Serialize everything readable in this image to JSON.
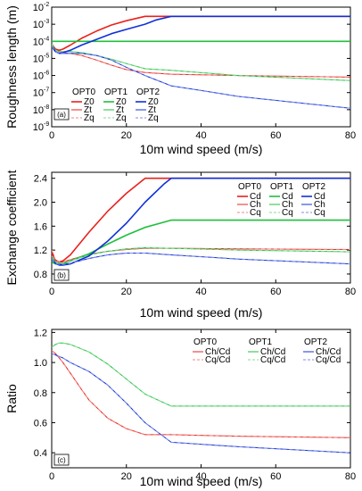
{
  "colors": {
    "opt0": "#e8221c",
    "opt1": "#1fbf3c",
    "opt2": "#1030d8"
  },
  "chart_data": [
    {
      "type": "line",
      "panel_label": "(a)",
      "xlabel": "10m wind speed (m/s)",
      "ylabel": "Roughness length (m)",
      "xlim": [
        0,
        80
      ],
      "ylim": [
        1e-09,
        0.01
      ],
      "log_y": true,
      "xticks": [
        0,
        20,
        40,
        60,
        80
      ],
      "yticks": [
        1e-09,
        1e-08,
        1e-07,
        1e-06,
        1e-05,
        0.0001,
        0.001,
        0.01
      ],
      "ytick_labels": [
        "10",
        "10",
        "10",
        "10",
        "10",
        "10",
        "10",
        "10"
      ],
      "ytick_exponents": [
        "-9",
        "-8",
        "-7",
        "-6",
        "-5",
        "-4",
        "-3",
        "-2"
      ],
      "legend": [
        {
          "group": "OPT0",
          "items": [
            "Z0",
            "Zt",
            "Zq"
          ]
        },
        {
          "group": "OPT1",
          "items": [
            "Z0",
            "Zt",
            "Zq"
          ]
        },
        {
          "group": "OPT2",
          "items": [
            "Z0",
            "Zt",
            "Zq"
          ]
        }
      ],
      "series": [
        {
          "name": "Z0",
          "group": "OPT0",
          "style": "solid",
          "x": [
            0,
            1,
            2,
            3,
            5,
            8,
            12,
            16,
            20,
            25,
            32,
            50,
            80
          ],
          "y": [
            7e-05,
            3.5e-05,
            3e-05,
            3.5e-05,
            6e-05,
            0.00015,
            0.0004,
            0.0009,
            0.0016,
            0.0029,
            0.0029,
            0.0029,
            0.0029
          ]
        },
        {
          "name": "Zt",
          "group": "OPT0",
          "style": "solid",
          "x": [
            0,
            1,
            2,
            3,
            5,
            8,
            12,
            16,
            20,
            25,
            32,
            50,
            80
          ],
          "y": [
            6e-05,
            2.5e-05,
            2e-05,
            2e-05,
            2e-05,
            1.5e-05,
            8e-06,
            4e-06,
            2.2e-06,
            1.5e-06,
            1.2e-06,
            1e-06,
            8e-07
          ]
        },
        {
          "name": "Zq",
          "group": "OPT0",
          "style": "dashed",
          "x": [
            0,
            1,
            2,
            3,
            5,
            8,
            12,
            16,
            20,
            25,
            32,
            50,
            80
          ],
          "y": [
            6e-05,
            2.5e-05,
            2e-05,
            2e-05,
            2e-05,
            1.5e-05,
            8e-06,
            4e-06,
            2.2e-06,
            1.5e-06,
            1.2e-06,
            1e-06,
            8e-07
          ]
        },
        {
          "name": "Z0",
          "group": "OPT1",
          "style": "solid",
          "x": [
            0,
            80
          ],
          "y": [
            0.0001,
            0.0001
          ]
        },
        {
          "name": "Zt",
          "group": "OPT1",
          "style": "solid",
          "x": [
            0,
            1,
            2,
            3,
            5,
            8,
            12,
            16,
            20,
            25,
            32,
            50,
            80
          ],
          "y": [
            7e-05,
            3e-05,
            2.5e-05,
            2.5e-05,
            2.5e-05,
            2.2e-05,
            1.5e-05,
            9e-06,
            5e-06,
            2.5e-06,
            2e-06,
            1e-06,
            5e-07
          ]
        },
        {
          "name": "Zq",
          "group": "OPT1",
          "style": "dashed",
          "x": [
            0,
            1,
            2,
            3,
            5,
            8,
            12,
            16,
            20,
            25,
            32,
            50,
            80
          ],
          "y": [
            7e-05,
            3e-05,
            2.5e-05,
            2.5e-05,
            2.5e-05,
            2.2e-05,
            1.5e-05,
            9e-06,
            5e-06,
            2.5e-06,
            2e-06,
            1e-06,
            5e-07
          ]
        },
        {
          "name": "Z0",
          "group": "OPT2",
          "style": "solid",
          "x": [
            0,
            1,
            2,
            3,
            5,
            8,
            12,
            16,
            20,
            25,
            28,
            32,
            50,
            80
          ],
          "y": [
            5e-05,
            2.5e-05,
            2e-05,
            2.2e-05,
            3e-05,
            6e-05,
            0.00013,
            0.00028,
            0.0005,
            0.001,
            0.0018,
            0.0029,
            0.0029,
            0.0029
          ]
        },
        {
          "name": "Zt",
          "group": "OPT2",
          "style": "solid",
          "x": [
            0,
            1,
            2,
            3,
            5,
            8,
            12,
            16,
            20,
            25,
            32,
            50,
            80
          ],
          "y": [
            5e-05,
            2.5e-05,
            2e-05,
            2e-05,
            2e-05,
            2e-05,
            1.5e-05,
            8e-06,
            3e-06,
            1e-06,
            2.5e-07,
            6e-08,
            1.2e-08
          ]
        },
        {
          "name": "Zq",
          "group": "OPT2",
          "style": "dashed",
          "x": [
            0,
            1,
            2,
            3,
            5,
            8,
            12,
            16,
            20,
            25,
            32,
            50,
            80
          ],
          "y": [
            5e-05,
            2.5e-05,
            2e-05,
            2e-05,
            2e-05,
            2e-05,
            1.5e-05,
            8e-06,
            3e-06,
            1e-06,
            2.5e-07,
            6e-08,
            1.2e-08
          ]
        }
      ]
    },
    {
      "type": "line",
      "panel_label": "(b)",
      "xlabel": "10m wind speed (m/s)",
      "ylabel": "Exchange coefficient",
      "xlim": [
        0,
        80
      ],
      "ylim": [
        0.65,
        2.5
      ],
      "xticks": [
        0,
        20,
        40,
        60,
        80
      ],
      "yticks": [
        0.8,
        1.2,
        1.6,
        2.0,
        2.4
      ],
      "ytick_labels": [
        "0.8",
        "1.2",
        "1.6",
        "2.0",
        "2.4"
      ],
      "legend": [
        {
          "group": "OPT0",
          "items": [
            "Cd",
            "Ch",
            "Cq"
          ]
        },
        {
          "group": "OPT1",
          "items": [
            "Cd",
            "Ch",
            "Cq"
          ]
        },
        {
          "group": "OPT2",
          "items": [
            "Cd",
            "Ch",
            "Cq"
          ]
        }
      ],
      "series": [
        {
          "name": "Cd",
          "group": "OPT0",
          "style": "solid",
          "x": [
            0,
            1,
            2,
            3,
            5,
            10,
            15,
            20,
            25,
            80
          ],
          "y": [
            1.15,
            1.03,
            1.0,
            1.02,
            1.12,
            1.5,
            1.85,
            2.15,
            2.4,
            2.4
          ]
        },
        {
          "name": "Ch",
          "group": "OPT0",
          "style": "solid",
          "x": [
            0,
            1,
            2,
            3,
            5,
            10,
            15,
            20,
            25,
            32,
            50,
            80
          ],
          "y": [
            1.2,
            1.03,
            1.0,
            1.0,
            1.04,
            1.13,
            1.18,
            1.21,
            1.23,
            1.23,
            1.22,
            1.21
          ]
        },
        {
          "name": "Cq",
          "group": "OPT0",
          "style": "dashed",
          "x": [
            0,
            1,
            2,
            3,
            5,
            10,
            15,
            20,
            25,
            32,
            50,
            80
          ],
          "y": [
            1.2,
            1.03,
            1.0,
            1.0,
            1.04,
            1.13,
            1.18,
            1.21,
            1.23,
            1.23,
            1.22,
            1.21
          ]
        },
        {
          "name": "Cd",
          "group": "OPT1",
          "style": "solid",
          "x": [
            0,
            1,
            2,
            3,
            5,
            10,
            15,
            20,
            25,
            32,
            80
          ],
          "y": [
            1.0,
            0.97,
            0.96,
            0.97,
            1.02,
            1.14,
            1.3,
            1.45,
            1.58,
            1.7,
            1.7
          ]
        },
        {
          "name": "Ch",
          "group": "OPT1",
          "style": "solid",
          "x": [
            0,
            1,
            2,
            3,
            5,
            10,
            15,
            20,
            25,
            32,
            50,
            80
          ],
          "y": [
            1.1,
            1.0,
            0.98,
            0.98,
            1.02,
            1.12,
            1.18,
            1.22,
            1.24,
            1.23,
            1.2,
            1.17
          ]
        },
        {
          "name": "Cq",
          "group": "OPT1",
          "style": "dashed",
          "x": [
            0,
            1,
            2,
            3,
            5,
            10,
            15,
            20,
            25,
            32,
            50,
            80
          ],
          "y": [
            1.1,
            1.0,
            0.98,
            0.98,
            1.02,
            1.12,
            1.18,
            1.22,
            1.24,
            1.23,
            1.2,
            1.17
          ]
        },
        {
          "name": "Cd",
          "group": "OPT2",
          "style": "solid",
          "x": [
            0,
            1,
            2,
            3,
            5,
            10,
            15,
            20,
            25,
            30,
            32,
            80
          ],
          "y": [
            1.05,
            0.98,
            0.95,
            0.95,
            0.97,
            1.1,
            1.35,
            1.65,
            2.0,
            2.3,
            2.4,
            2.4
          ]
        },
        {
          "name": "Ch",
          "group": "OPT2",
          "style": "solid",
          "x": [
            0,
            1,
            2,
            3,
            5,
            10,
            15,
            20,
            25,
            32,
            50,
            80
          ],
          "y": [
            1.05,
            0.98,
            0.96,
            0.96,
            0.98,
            1.06,
            1.12,
            1.15,
            1.15,
            1.12,
            1.05,
            0.97
          ]
        },
        {
          "name": "Cq",
          "group": "OPT2",
          "style": "dashed",
          "x": [
            0,
            1,
            2,
            3,
            5,
            10,
            15,
            20,
            25,
            32,
            50,
            80
          ],
          "y": [
            1.05,
            0.98,
            0.96,
            0.96,
            0.98,
            1.06,
            1.12,
            1.15,
            1.15,
            1.12,
            1.05,
            0.97
          ]
        }
      ]
    },
    {
      "type": "line",
      "panel_label": "(c)",
      "xlabel": "10m wind speed (m/s)",
      "ylabel": "Ratio",
      "xlim": [
        0,
        80
      ],
      "ylim": [
        0.3,
        1.22
      ],
      "xticks": [
        0,
        20,
        40,
        60,
        80
      ],
      "yticks": [
        0.4,
        0.6,
        0.8,
        1.0,
        1.2
      ],
      "ytick_labels": [
        "0.4",
        "0.6",
        "0.8",
        "1.0",
        "1.2"
      ],
      "legend": [
        {
          "group": "OPT0",
          "items": [
            "Ch/Cd",
            "Cq/Cd"
          ]
        },
        {
          "group": "OPT1",
          "items": [
            "Ch/Cd",
            "Cq/Cd"
          ]
        },
        {
          "group": "OPT2",
          "items": [
            "Ch/Cd",
            "Cq/Cd"
          ]
        }
      ],
      "series": [
        {
          "name": "Ch/Cd",
          "group": "OPT0",
          "style": "solid",
          "x": [
            0,
            1,
            2,
            3,
            5,
            8,
            10,
            15,
            20,
            25,
            32,
            50,
            80
          ],
          "y": [
            1.08,
            1.06,
            1.03,
            1.0,
            0.93,
            0.82,
            0.75,
            0.63,
            0.56,
            0.52,
            0.52,
            0.51,
            0.5
          ]
        },
        {
          "name": "Cq/Cd",
          "group": "OPT0",
          "style": "dashed",
          "x": [
            0,
            1,
            2,
            3,
            5,
            8,
            10,
            15,
            20,
            25,
            32,
            50,
            80
          ],
          "y": [
            1.08,
            1.06,
            1.03,
            1.0,
            0.93,
            0.82,
            0.75,
            0.63,
            0.56,
            0.52,
            0.52,
            0.51,
            0.5
          ]
        },
        {
          "name": "Ch/Cd",
          "group": "OPT1",
          "style": "solid",
          "x": [
            0,
            1,
            2,
            3,
            5,
            10,
            15,
            20,
            25,
            32,
            50,
            80
          ],
          "y": [
            1.1,
            1.12,
            1.13,
            1.13,
            1.12,
            1.07,
            0.99,
            0.89,
            0.79,
            0.71,
            0.71,
            0.71
          ]
        },
        {
          "name": "Cq/Cd",
          "group": "OPT1",
          "style": "dashed",
          "x": [
            0,
            1,
            2,
            3,
            5,
            10,
            15,
            20,
            25,
            32,
            50,
            80
          ],
          "y": [
            1.1,
            1.12,
            1.13,
            1.13,
            1.12,
            1.07,
            0.99,
            0.89,
            0.79,
            0.71,
            0.71,
            0.71
          ]
        },
        {
          "name": "Ch/Cd",
          "group": "OPT2",
          "style": "solid",
          "x": [
            0,
            1,
            2,
            3,
            5,
            10,
            15,
            20,
            25,
            32,
            50,
            80
          ],
          "y": [
            1.06,
            1.05,
            1.04,
            1.03,
            1.0,
            0.94,
            0.85,
            0.73,
            0.6,
            0.47,
            0.44,
            0.4
          ]
        },
        {
          "name": "Cq/Cd",
          "group": "OPT2",
          "style": "dashed",
          "x": [
            0,
            1,
            2,
            3,
            5,
            10,
            15,
            20,
            25,
            32,
            50,
            80
          ],
          "y": [
            1.06,
            1.05,
            1.04,
            1.03,
            1.0,
            0.94,
            0.85,
            0.73,
            0.6,
            0.47,
            0.44,
            0.4
          ]
        }
      ]
    }
  ]
}
